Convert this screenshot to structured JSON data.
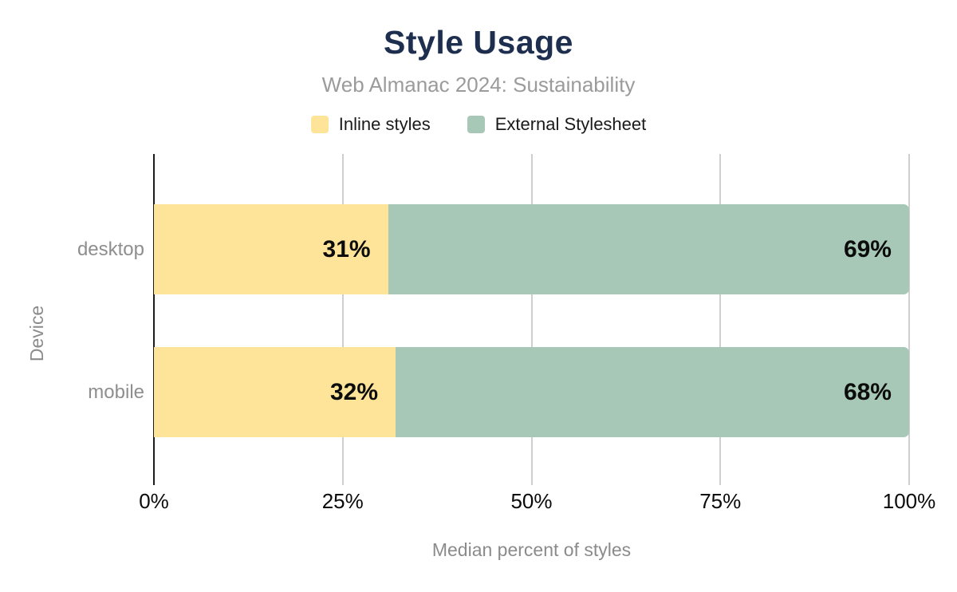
{
  "chart_data": {
    "type": "bar",
    "orientation": "horizontal",
    "stacked": true,
    "title": "Style Usage",
    "subtitle": "Web Almanac 2024: Sustainability",
    "xlabel": "Median percent of styles",
    "ylabel": "Device",
    "categories": [
      "desktop",
      "mobile"
    ],
    "series": [
      {
        "name": "Inline styles",
        "color": "#fde499",
        "values": [
          31,
          32
        ]
      },
      {
        "name": "External Stylesheet",
        "color": "#a7c8b6",
        "values": [
          69,
          68
        ]
      }
    ],
    "value_suffix": "%",
    "x_ticks": [
      {
        "label": "0%",
        "value": 0
      },
      {
        "label": "25%",
        "value": 25
      },
      {
        "label": "50%",
        "value": 50
      },
      {
        "label": "75%",
        "value": 75
      },
      {
        "label": "100%",
        "value": 100
      }
    ],
    "xlim": [
      0,
      100
    ],
    "grid": true,
    "legend_position": "top"
  },
  "colors": {
    "title": "#1d2e4f",
    "subtitle": "#9b9b9b",
    "axis_line": "#1c1c1c",
    "gridline": "#cfcfcf",
    "tick_label": "#0a0a0a",
    "category_label": "#8e8e8e",
    "axis_title": "#8b8b8b",
    "bar_value_label": "#0c0c0c",
    "background": "#ffffff"
  }
}
